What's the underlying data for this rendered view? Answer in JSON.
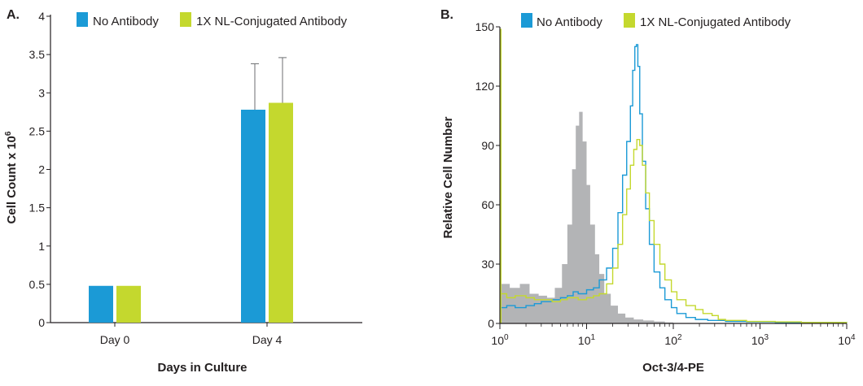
{
  "colors": {
    "no_antibody": "#1b9ad6",
    "conjugated": "#c4d82e",
    "shaded": "#b3b4b6",
    "axis": "#231f20"
  },
  "chart_data": [
    {
      "panel_label": "A.",
      "type": "bar",
      "xlabel": "Days in Culture",
      "ylabel": "Cell Count x 10",
      "ylabel_superscript": "6",
      "ylim": [
        0,
        4
      ],
      "yticks": [
        "0",
        "0.5",
        "1",
        "1.5",
        "2",
        "2.5",
        "3",
        "3.5",
        "4"
      ],
      "categories": [
        "Day 0",
        "Day 4"
      ],
      "legend_position": "top",
      "series": [
        {
          "name": "No Antibody",
          "values": [
            0.48,
            2.78
          ],
          "errors": [
            0,
            0.6
          ]
        },
        {
          "name": "1X NL-Conjugated Antibody",
          "values": [
            0.48,
            2.87
          ],
          "errors": [
            0,
            0.59
          ]
        }
      ]
    },
    {
      "panel_label": "B.",
      "type": "line",
      "xlabel": "Oct-3/4-PE",
      "ylabel": "Relative Cell Number",
      "x_scale": "log",
      "xlim": [
        1,
        10000
      ],
      "ylim": [
        0,
        150
      ],
      "yticks": [
        "0",
        "30",
        "60",
        "90",
        "120",
        "150"
      ],
      "xticks": [
        {
          "base": "10",
          "exp": "0"
        },
        {
          "base": "10",
          "exp": "1"
        },
        {
          "base": "10",
          "exp": "2"
        },
        {
          "base": "10",
          "exp": "3"
        },
        {
          "base": "10",
          "exp": "4"
        }
      ],
      "legend_position": "top",
      "shaded_series": {
        "x": [
          1,
          1.3,
          1.7,
          2.2,
          2.8,
          3.5,
          4.3,
          5.2,
          6.0,
          6.8,
          7.5,
          8.2,
          9.0,
          10,
          11,
          12.5,
          14,
          16,
          19,
          23,
          28,
          35,
          45,
          60,
          80,
          100
        ],
        "values": [
          20,
          18,
          20,
          15,
          14,
          13,
          18,
          30,
          50,
          78,
          100,
          107,
          92,
          70,
          50,
          35,
          25,
          15,
          9,
          5,
          3,
          2,
          1.5,
          1,
          0.5,
          0
        ]
      },
      "series": [
        {
          "name": "No Antibody",
          "x": [
            1,
            1.2,
            1.5,
            2,
            2.5,
            3,
            4,
            5,
            6,
            7,
            8,
            10,
            12,
            14,
            17,
            20,
            23,
            26,
            29,
            32,
            34,
            36,
            37.5,
            39,
            41,
            44,
            48,
            53,
            60,
            70,
            80,
            95,
            110,
            140,
            180,
            250,
            400,
            700,
            1500,
            3000,
            6000,
            10000
          ],
          "values": [
            8,
            9,
            8,
            9,
            10,
            11,
            12,
            13,
            14,
            16,
            15,
            17,
            18,
            22,
            28,
            38,
            56,
            75,
            92,
            110,
            128,
            140,
            141,
            130,
            106,
            82,
            58,
            40,
            26,
            18,
            12,
            8,
            5,
            3,
            2,
            1.5,
            1,
            0.8,
            0.5,
            0.5,
            0.5,
            0.3
          ]
        },
        {
          "name": "1X NL-Conjugated Antibody",
          "x": [
            1,
            1.2,
            1.5,
            2,
            2.5,
            3,
            4,
            5,
            6,
            7,
            8,
            10,
            12,
            14,
            17,
            20,
            23,
            26,
            29,
            32,
            35,
            38,
            41,
            44,
            48,
            53,
            60,
            70,
            80,
            95,
            110,
            140,
            180,
            220,
            280,
            330,
            400,
            700,
            1500,
            3000,
            6000,
            10000
          ],
          "values": [
            15,
            13,
            14,
            13,
            12,
            12,
            11,
            12,
            13,
            13,
            12,
            13,
            14,
            15,
            20,
            28,
            40,
            55,
            68,
            80,
            88,
            93,
            90,
            80,
            66,
            52,
            40,
            30,
            22,
            16,
            12,
            9,
            7,
            5,
            4,
            2,
            1.5,
            1,
            0.8,
            0.5,
            0.5,
            0.3
          ]
        }
      ]
    }
  ]
}
